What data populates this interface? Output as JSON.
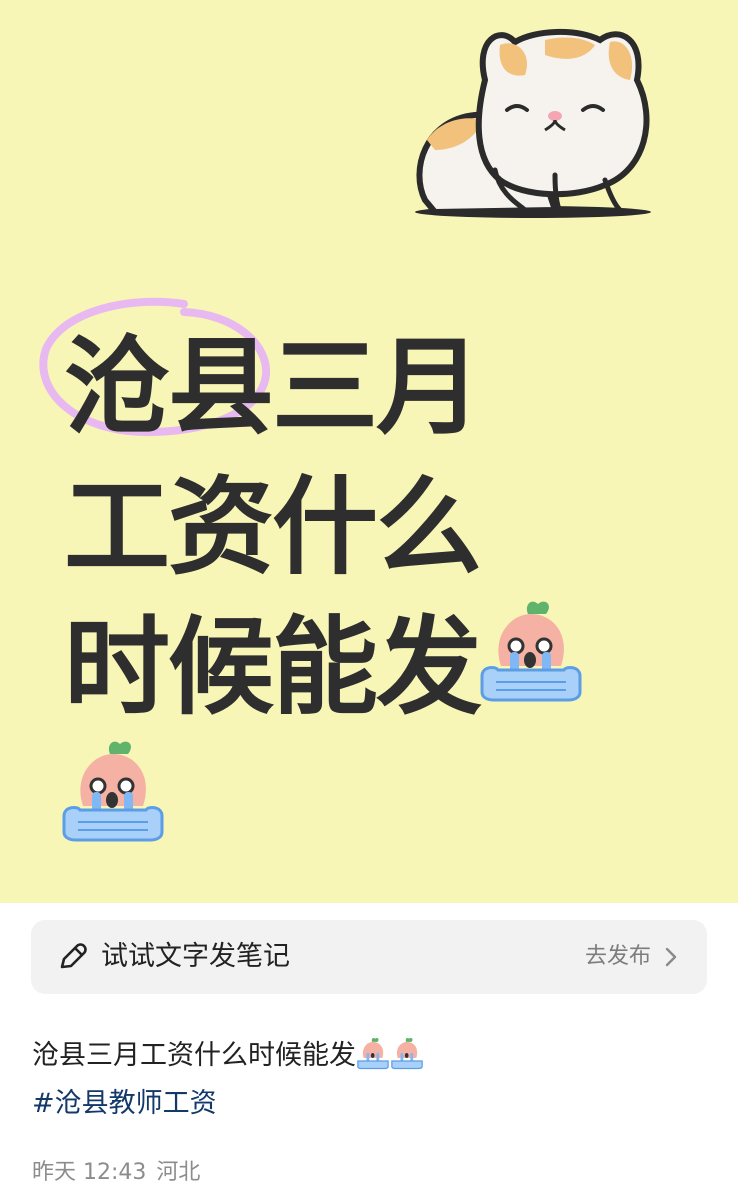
{
  "cover": {
    "headline_lines": [
      "沧县三月",
      "工资什么",
      "时候能发"
    ],
    "background": "#f8f6b6",
    "highlight_color": "#e7b9f0",
    "decorations": [
      "sleeping-cat-illustration",
      "crying-peach-emoji",
      "crying-peach-emoji"
    ]
  },
  "composer_bar": {
    "label": "试试文字发笔记",
    "action": "去发布",
    "icons": [
      "pencil-icon",
      "chevron-right-icon"
    ]
  },
  "post": {
    "text": "沧县三月工资什么时候能发",
    "trailing_emojis": [
      "crying-peach-emoji",
      "crying-peach-emoji"
    ],
    "hashtag": "#沧县教师工资"
  },
  "meta": {
    "time": "昨天 12:43",
    "location": "河北"
  }
}
